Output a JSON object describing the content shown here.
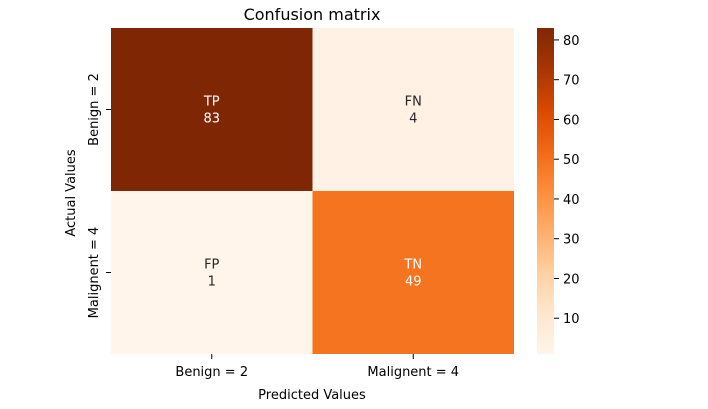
{
  "chart_data": {
    "type": "heatmap",
    "title": "Confusion matrix",
    "xlabel": "Predicted Values",
    "ylabel": "Actual Values",
    "x_categories": [
      "Benign = 2",
      "Malignent = 4"
    ],
    "y_categories": [
      "Benign = 2",
      "Malignent = 4"
    ],
    "cells": [
      {
        "row": 0,
        "col": 0,
        "label": "TP",
        "value": 83
      },
      {
        "row": 0,
        "col": 1,
        "label": "FN",
        "value": 4
      },
      {
        "row": 1,
        "col": 0,
        "label": "FP",
        "value": 1
      },
      {
        "row": 1,
        "col": 1,
        "label": "TN",
        "value": 49
      }
    ],
    "colormap": "Oranges",
    "colorbar": {
      "min": 1,
      "max": 83,
      "ticks": [
        10,
        20,
        30,
        40,
        50,
        60,
        70,
        80
      ]
    }
  }
}
